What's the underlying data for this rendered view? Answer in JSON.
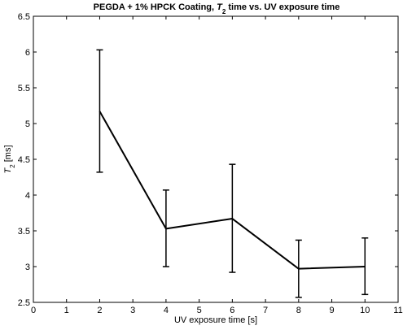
{
  "chart_data": {
    "type": "line",
    "title_parts": {
      "before": "PEGDA + 1% HPCK Coating, ",
      "symbol": "T",
      "subscript": "2",
      "after": " time vs. UV exposure time"
    },
    "xlabel": "UV exposure time [s]",
    "ylabel_parts": {
      "symbol": "T",
      "subscript": "2",
      "after": " [ms]"
    },
    "xlim": [
      0,
      11
    ],
    "ylim": [
      2.5,
      6.5
    ],
    "x_ticks": [
      "0",
      "1",
      "2",
      "3",
      "4",
      "5",
      "6",
      "7",
      "8",
      "9",
      "10",
      "11"
    ],
    "y_ticks": [
      "2.5",
      "3",
      "3.5",
      "4",
      "4.5",
      "5",
      "5.5",
      "6",
      "6.5"
    ],
    "grid": false,
    "series": [
      {
        "x": [
          2,
          4,
          6,
          8,
          10
        ],
        "y": [
          5.17,
          3.53,
          3.67,
          2.97,
          3.0
        ],
        "err_low": [
          4.32,
          3.0,
          2.92,
          2.57,
          2.61
        ],
        "err_high": [
          6.03,
          4.07,
          4.43,
          3.37,
          3.4
        ]
      }
    ],
    "line_color": "#000000"
  }
}
